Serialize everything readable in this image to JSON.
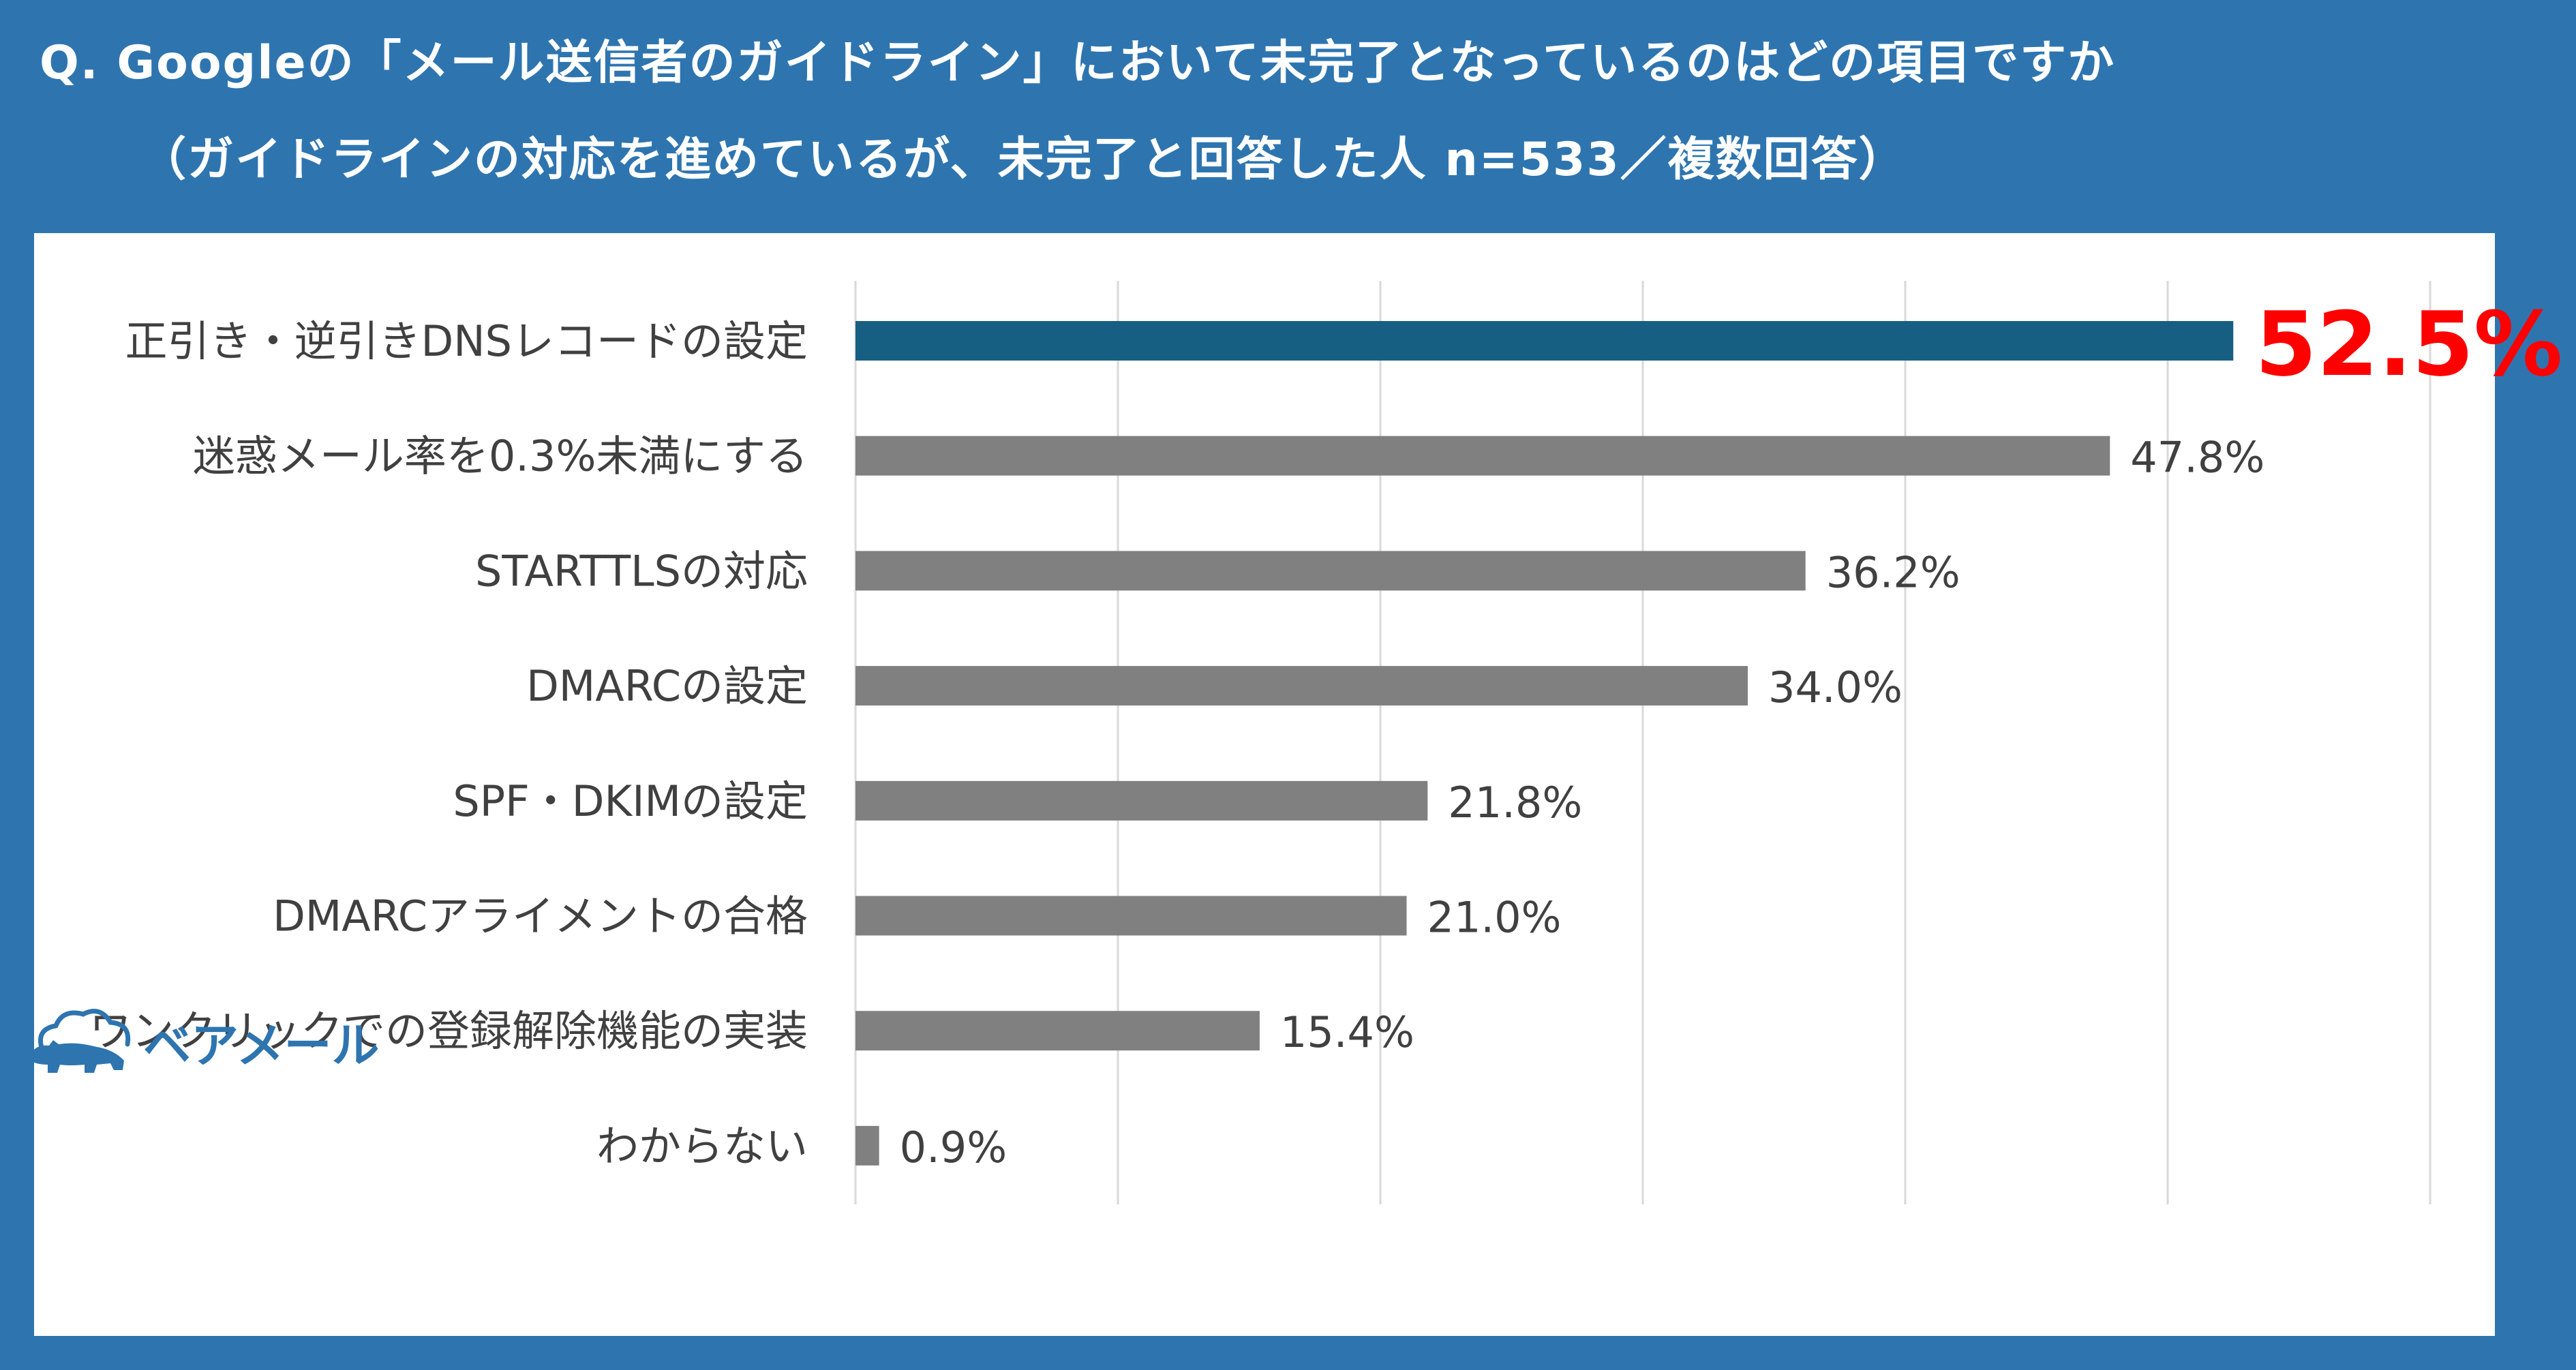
{
  "header": {
    "question": "Q. Googleの「メール送信者のガイドライン」において未完了となっているのはどの項目ですか",
    "subtitle": "（ガイドラインの対応を進めているが、未完了と回答した人 n=533／複数回答）"
  },
  "brand": {
    "name": "ベアメール",
    "logo_icon": "bear-cloud-icon"
  },
  "colors": {
    "background": "#2e75b0",
    "highlight_bar": "#175f82",
    "bar": "#808080",
    "highlight_label": "#ff0000",
    "grid": "#d9d9d9"
  },
  "chart_data": {
    "type": "bar",
    "orientation": "horizontal",
    "categories": [
      "正引き・逆引きDNSレコードの設定",
      "迷惑メール率を0.3%未満にする",
      "STARTTLSの対応",
      "DMARCの設定",
      "SPF・DKIMの設定",
      "DMARCアライメントの合格",
      "ワンクリックでの登録解除機能の実装",
      "わからない"
    ],
    "values": [
      52.5,
      47.8,
      36.2,
      34.0,
      21.8,
      21.0,
      15.4,
      0.9
    ],
    "value_labels": [
      "52.5%",
      "47.8%",
      "36.2%",
      "34.0%",
      "21.8%",
      "21.0%",
      "15.4%",
      "0.9%"
    ],
    "highlight_index": 0,
    "xlim": [
      0,
      60
    ],
    "grid": true,
    "gridlines": [
      0,
      10,
      20,
      30,
      40,
      50,
      60
    ],
    "legend": "none"
  }
}
